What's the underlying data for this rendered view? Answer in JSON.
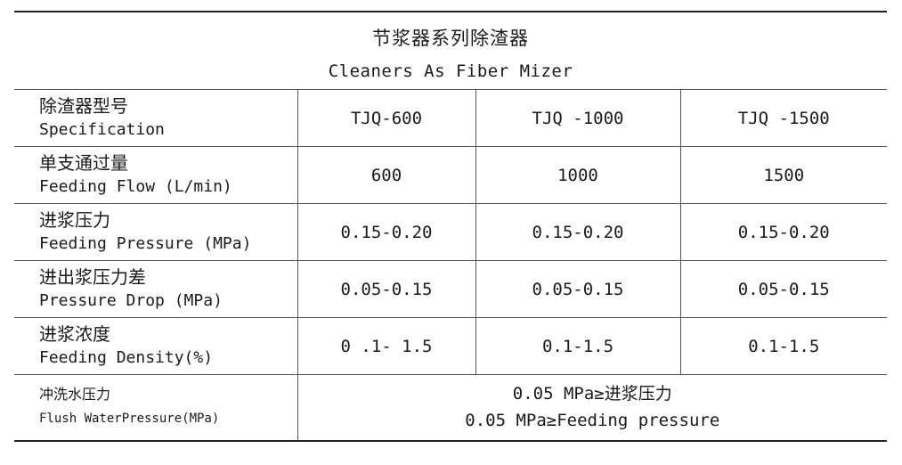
{
  "table": {
    "title_zh": "节浆器系列除渣器",
    "title_en": "Cleaners As Fiber Mizer",
    "header": {
      "label_zh": "除渣器型号",
      "label_en": "Specification",
      "models": [
        "TJQ-600",
        "TJQ -1000",
        "TJQ -1500"
      ]
    },
    "rows": [
      {
        "label_zh": "单支通过量",
        "label_en": "Feeding Flow (L/min)",
        "values": [
          "600",
          "1000",
          "1500"
        ]
      },
      {
        "label_zh": "进浆压力",
        "label_en": "Feeding Pressure (MPa)",
        "values": [
          "0.15-0.20",
          "0.15-0.20",
          "0.15-0.20"
        ]
      },
      {
        "label_zh": "进出浆压力差",
        "label_en": "Pressure Drop (MPa)",
        "values": [
          "0.05-0.15",
          "0.05-0.15",
          "0.05-0.15"
        ]
      },
      {
        "label_zh": "进浆浓度",
        "label_en": "Feeding Density(%)",
        "values": [
          "0 .1- 1.5",
          "0.1-1.5",
          "0.1-1.5"
        ]
      }
    ],
    "flush": {
      "label_zh": "冲洗水压力",
      "label_en": "Flush WaterPressure(MPa)",
      "value_zh": "0.05 MPa≥进浆压力",
      "value_en": "0.05 MPa≥Feeding pressure"
    }
  }
}
